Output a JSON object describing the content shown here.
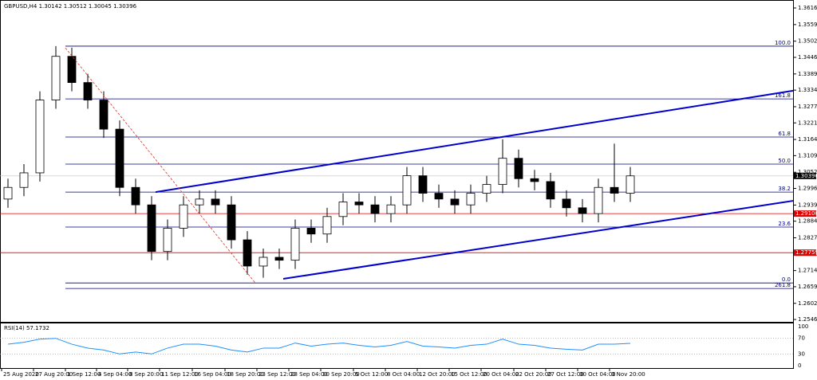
{
  "chart_data": {
    "type": "candlestick",
    "title": "GBPUSD,H4  1.30142 1.30512 1.30045 1.30396",
    "xlim": [
      -0.5,
      49.2
    ],
    "ylim": [
      1.25357,
      1.36434
    ],
    "xticks": [
      {
        "value": -0.4,
        "label": "25 Aug 2020"
      },
      {
        "value": 1.6,
        "label": "27 Aug 20:00"
      },
      {
        "value": 3.6,
        "label": "1 Sep 12:00"
      },
      {
        "value": 5.55,
        "label": "4 Sep 04:00"
      },
      {
        "value": 7.5,
        "label": "8 Sep 20:00"
      },
      {
        "value": 9.5,
        "label": "11 Sep 12:00"
      },
      {
        "value": 11.55,
        "label": "16 Sep 04:00"
      },
      {
        "value": 13.6,
        "label": "18 Sep 20:00"
      },
      {
        "value": 15.6,
        "label": "23 Sep 12:00"
      },
      {
        "value": 17.6,
        "label": "28 Sep 04:00"
      },
      {
        "value": 19.6,
        "label": "30 Sep 20:00"
      },
      {
        "value": 21.65,
        "label": "5 Oct 12:00"
      },
      {
        "value": 23.65,
        "label": "8 Oct 04:00"
      },
      {
        "value": 25.65,
        "label": "12 Oct 20:00"
      },
      {
        "value": 27.65,
        "label": "15 Oct 12:00"
      },
      {
        "value": 29.65,
        "label": "20 Oct 04:00"
      },
      {
        "value": 31.7,
        "label": "22 Oct 20:00"
      },
      {
        "value": 33.7,
        "label": "27 Oct 12:00"
      },
      {
        "value": 35.7,
        "label": "30 Oct 04:00"
      },
      {
        "value": 37.7,
        "label": "3 Nov 20:00"
      }
    ],
    "yticks": [
      {
        "value": 1.3616,
        "label": "1.36160"
      },
      {
        "value": 1.3559,
        "label": "1.35590"
      },
      {
        "value": 1.3502,
        "label": "1.35020"
      },
      {
        "value": 1.34465,
        "label": "1.34465"
      },
      {
        "value": 1.33895,
        "label": "1.33895"
      },
      {
        "value": 1.3334,
        "label": "1.33340"
      },
      {
        "value": 1.3277,
        "label": "1.32770"
      },
      {
        "value": 1.32215,
        "label": "1.32215"
      },
      {
        "value": 1.31645,
        "label": "1.31645"
      },
      {
        "value": 1.3109,
        "label": "1.31090"
      },
      {
        "value": 1.3052,
        "label": "1.30520"
      },
      {
        "value": 1.29965,
        "label": "1.29965"
      },
      {
        "value": 1.29395,
        "label": "1.29395"
      },
      {
        "value": 1.2884,
        "label": "1.28840"
      },
      {
        "value": 1.2827,
        "label": "1.28270"
      },
      {
        "value": 1.27715,
        "label": "1.27715"
      },
      {
        "value": 1.27145,
        "label": "1.27145"
      },
      {
        "value": 1.2659,
        "label": "1.26590"
      },
      {
        "value": 1.2602,
        "label": "1.26020"
      },
      {
        "value": 1.25465,
        "label": "1.25465"
      }
    ],
    "open": [
      1.296,
      1.3,
      1.305,
      1.33,
      1.345,
      1.336,
      1.33,
      1.32,
      1.3,
      1.294,
      1.278,
      1.286,
      1.294,
      1.296,
      1.294,
      1.282,
      1.273,
      1.276,
      1.275,
      1.286,
      1.284,
      1.29,
      1.295,
      1.294,
      1.291,
      1.294,
      1.304,
      1.298,
      1.296,
      1.294,
      1.298,
      1.301,
      1.31,
      1.303,
      1.302,
      1.296,
      1.293,
      1.291,
      1.3,
      1.298
    ],
    "high": [
      1.303,
      1.308,
      1.333,
      1.3485,
      1.348,
      1.339,
      1.333,
      1.323,
      1.303,
      1.297,
      1.289,
      1.297,
      1.299,
      1.299,
      1.297,
      1.285,
      1.279,
      1.279,
      1.289,
      1.289,
      1.293,
      1.298,
      1.298,
      1.297,
      1.297,
      1.307,
      1.307,
      1.301,
      1.299,
      1.301,
      1.304,
      1.3165,
      1.313,
      1.306,
      1.305,
      1.299,
      1.296,
      1.303,
      1.315,
      1.307
    ],
    "low": [
      1.293,
      1.297,
      1.302,
      1.327,
      1.333,
      1.327,
      1.317,
      1.297,
      1.291,
      1.275,
      1.275,
      1.283,
      1.291,
      1.291,
      1.279,
      1.27,
      1.269,
      1.272,
      1.272,
      1.281,
      1.281,
      1.287,
      1.291,
      1.288,
      1.288,
      1.291,
      1.295,
      1.293,
      1.291,
      1.291,
      1.295,
      1.298,
      1.3,
      1.299,
      1.293,
      1.29,
      1.288,
      1.288,
      1.295,
      1.295
    ],
    "close": [
      1.3,
      1.305,
      1.33,
      1.345,
      1.336,
      1.33,
      1.32,
      1.3,
      1.294,
      1.278,
      1.286,
      1.294,
      1.296,
      1.294,
      1.282,
      1.273,
      1.276,
      1.275,
      1.286,
      1.284,
      1.29,
      1.295,
      1.294,
      1.291,
      1.294,
      1.304,
      1.298,
      1.296,
      1.294,
      1.298,
      1.301,
      1.31,
      1.303,
      1.302,
      1.296,
      1.293,
      1.291,
      1.3,
      1.298,
      1.30396
    ],
    "color": "#000000",
    "fib_start": 3.6,
    "fib_color": "#000080",
    "fib_levels": [
      {
        "level": "100.0",
        "value": 1.3485
      },
      {
        "level": "161.8",
        "value": 1.3304
      },
      {
        "level": "61.8",
        "value": 1.3173
      },
      {
        "level": "50.0",
        "value": 1.308
      },
      {
        "level": "38.2",
        "value": 1.2984
      },
      {
        "level": "23.6",
        "value": 1.2864
      },
      {
        "level": "0.0",
        "value": 1.2672
      },
      {
        "level": "261.8",
        "value": 1.2653
      }
    ],
    "trend_lines": [
      {
        "x": [
          9.25,
          49.2
        ],
        "y": [
          1.2984,
          1.3332
        ],
        "color": "#0000cc"
      },
      {
        "x": [
          17.25,
          49.2
        ],
        "y": [
          1.2686,
          1.2954
        ],
        "color": "#0000cc"
      },
      {
        "x": [
          3.6,
          15.5
        ],
        "y": [
          1.3479,
          1.2672
        ],
        "color": "#e03020",
        "dashed": true
      }
    ],
    "price_lines": [
      {
        "value": 1.291,
        "label": "1.29100",
        "color": "#e00000"
      },
      {
        "value": 1.27759,
        "label": "1.27759",
        "color": "#e00000"
      }
    ],
    "current_price": {
      "value": 1.30396,
      "label": "1.30396"
    },
    "rsi": {
      "title": "RSI(14) 57.1732",
      "ylim": [
        0,
        100
      ],
      "yticks": [
        0,
        30,
        70,
        100
      ],
      "color": "#1e90ff",
      "values": [
        55,
        60,
        68,
        70,
        55,
        45,
        40,
        30,
        35,
        30,
        45,
        55,
        55,
        50,
        40,
        35,
        45,
        45,
        58,
        50,
        55,
        58,
        52,
        48,
        52,
        62,
        50,
        48,
        45,
        52,
        55,
        68,
        55,
        52,
        45,
        42,
        40,
        55,
        55,
        57.1732
      ]
    }
  }
}
